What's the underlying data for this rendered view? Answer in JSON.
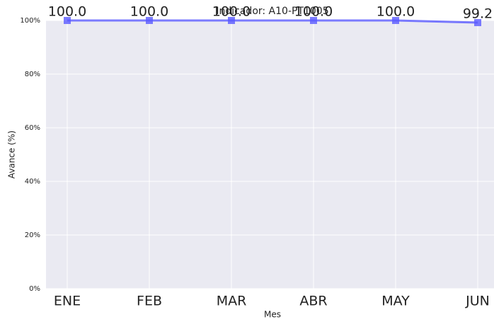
{
  "chart_data": {
    "type": "line",
    "title": "Indicador: A10-PT1005",
    "x_label": "Mes",
    "y_label": "Avance (%)",
    "categories": [
      "ENE",
      "FEB",
      "MAR",
      "ABR",
      "MAY",
      "JUN"
    ],
    "series": [
      {
        "name": "Avance",
        "color": "#5a5aff",
        "values": [
          100,
          100,
          100,
          100,
          100,
          99.2
        ],
        "value_labels": [
          "100.0",
          "100.0",
          "100.0",
          "100.0",
          "100.0",
          "99.2"
        ]
      }
    ],
    "ylim": [
      0,
      100
    ],
    "yticks": [
      {
        "value": 0,
        "label": "0%"
      },
      {
        "value": 20,
        "label": "20%"
      },
      {
        "value": 40,
        "label": "40%"
      },
      {
        "value": 60,
        "label": "60%"
      },
      {
        "value": 80,
        "label": "80%"
      },
      {
        "value": 100,
        "label": "100%"
      }
    ],
    "grid": true
  }
}
